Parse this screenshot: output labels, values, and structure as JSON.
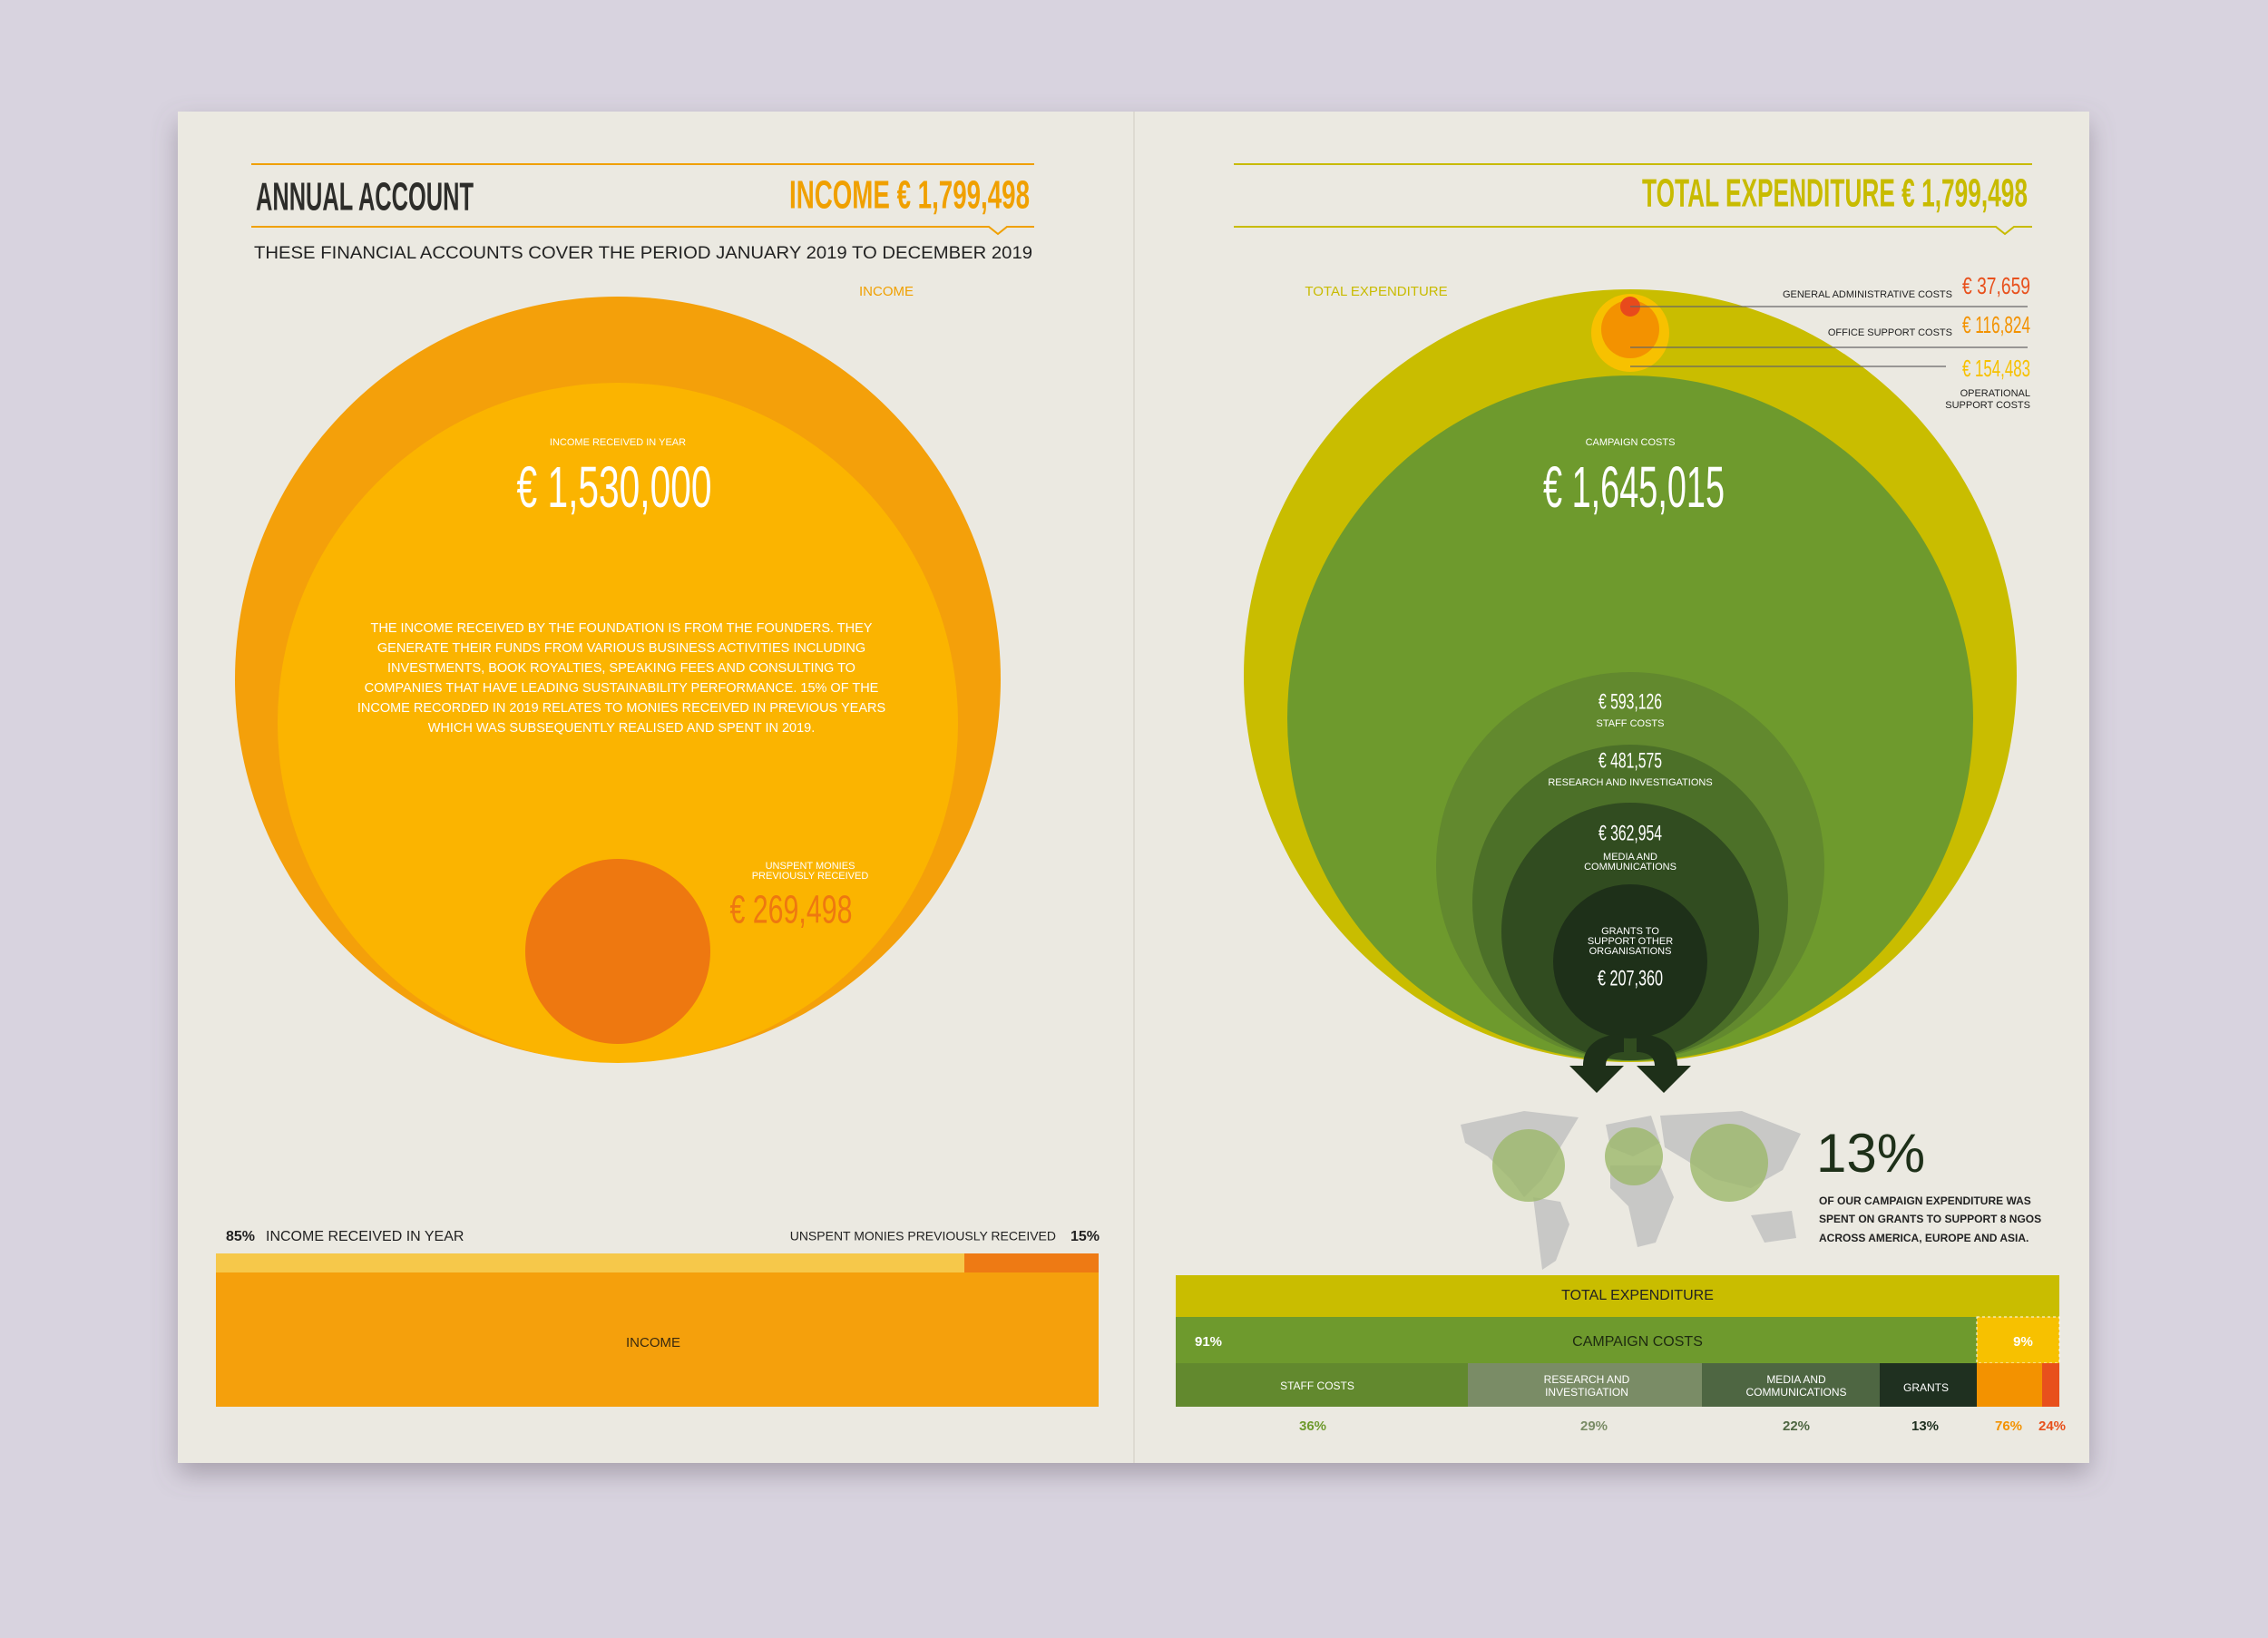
{
  "left": {
    "title": "ANNUAL ACCOUNT",
    "heading": "INCOME € 1,799,498",
    "subtitle": "THESE FINANCIAL ACCOUNTS COVER THE PERIOD JANUARY 2019 TO DECEMBER 2019",
    "circle": {
      "label": "INCOME",
      "received_label": "INCOME RECEIVED IN YEAR",
      "received_value": "€ 1,530,000",
      "description": [
        "THE INCOME RECEIVED BY THE FOUNDATION IS FROM THE FOUNDERS. THEY",
        "GENERATE THEIR FUNDS FROM VARIOUS BUSINESS ACTIVITIES INCLUDING",
        "INVESTMENTS, BOOK ROYALTIES, SPEAKING FEES AND CONSULTING TO",
        "COMPANIES THAT HAVE LEADING SUSTAINABILITY PERFORMANCE. 15% OF THE",
        "INCOME RECORDED IN 2019 RELATES TO MONIES RECEIVED IN PREVIOUS YEARS",
        "WHICH WAS SUBSEQUENTLY REALISED AND SPENT IN 2019."
      ],
      "unspent_label": [
        "UNSPENT MONIES",
        "PREVIOUSLY RECEIVED"
      ],
      "unspent_value": "€ 269,498"
    },
    "bar": {
      "left_pct": "85%",
      "left_label": "INCOME RECEIVED IN YEAR",
      "right_label": "UNSPENT MONIES PREVIOUSLY RECEIVED",
      "right_pct": "15%",
      "main_label": "INCOME"
    }
  },
  "right": {
    "heading": "TOTAL EXPENDITURE € 1,799,498",
    "circle": {
      "label": "TOTAL EXPENDITURE",
      "admin_label": "GENERAL ADMINISTRATIVE COSTS",
      "admin_value": "€ 37,659",
      "office_label": "OFFICE  SUPPORT COSTS",
      "office_value": "€ 116,824",
      "operational_value": "€ 154,483",
      "operational_label": [
        "OPERATIONAL",
        "SUPPORT COSTS"
      ],
      "campaign_label": "CAMPAIGN COSTS",
      "campaign_value": "€ 1,645,015",
      "staff_value": "€ 593,126",
      "staff_label": "STAFF COSTS",
      "research_value": "€ 481,575",
      "research_label": "RESEARCH AND INVESTIGATIONS",
      "media_value": "€ 362,954",
      "media_label": [
        "MEDIA AND",
        "COMMUNICATIONS"
      ],
      "grants_label": [
        "GRANTS TO",
        "SUPPORT OTHER",
        "ORGANISATIONS"
      ],
      "grants_value": "€ 207,360"
    },
    "grants_note": {
      "pct": "13%",
      "text": [
        "OF OUR CAMPAIGN EXPENDITURE WAS",
        "SPENT ON GRANTS TO SUPPORT 8 NGOS",
        "ACROSS AMERICA, EUROPE AND ASIA."
      ]
    },
    "bar": {
      "total_label": "TOTAL EXPENDITURE",
      "campaign_pct": "91%",
      "campaign_label": "CAMPAIGN COSTS",
      "support_pct": "9%",
      "staff_label": "STAFF COSTS",
      "research_label": [
        "RESEARCH AND",
        "INVESTIGATION"
      ],
      "media_label": [
        "MEDIA AND",
        "COMMUNICATIONS"
      ],
      "grants_label": "GRANTS",
      "pcts": [
        "36%",
        "29%",
        "22%",
        "13%",
        "76%",
        "24%"
      ]
    }
  }
}
